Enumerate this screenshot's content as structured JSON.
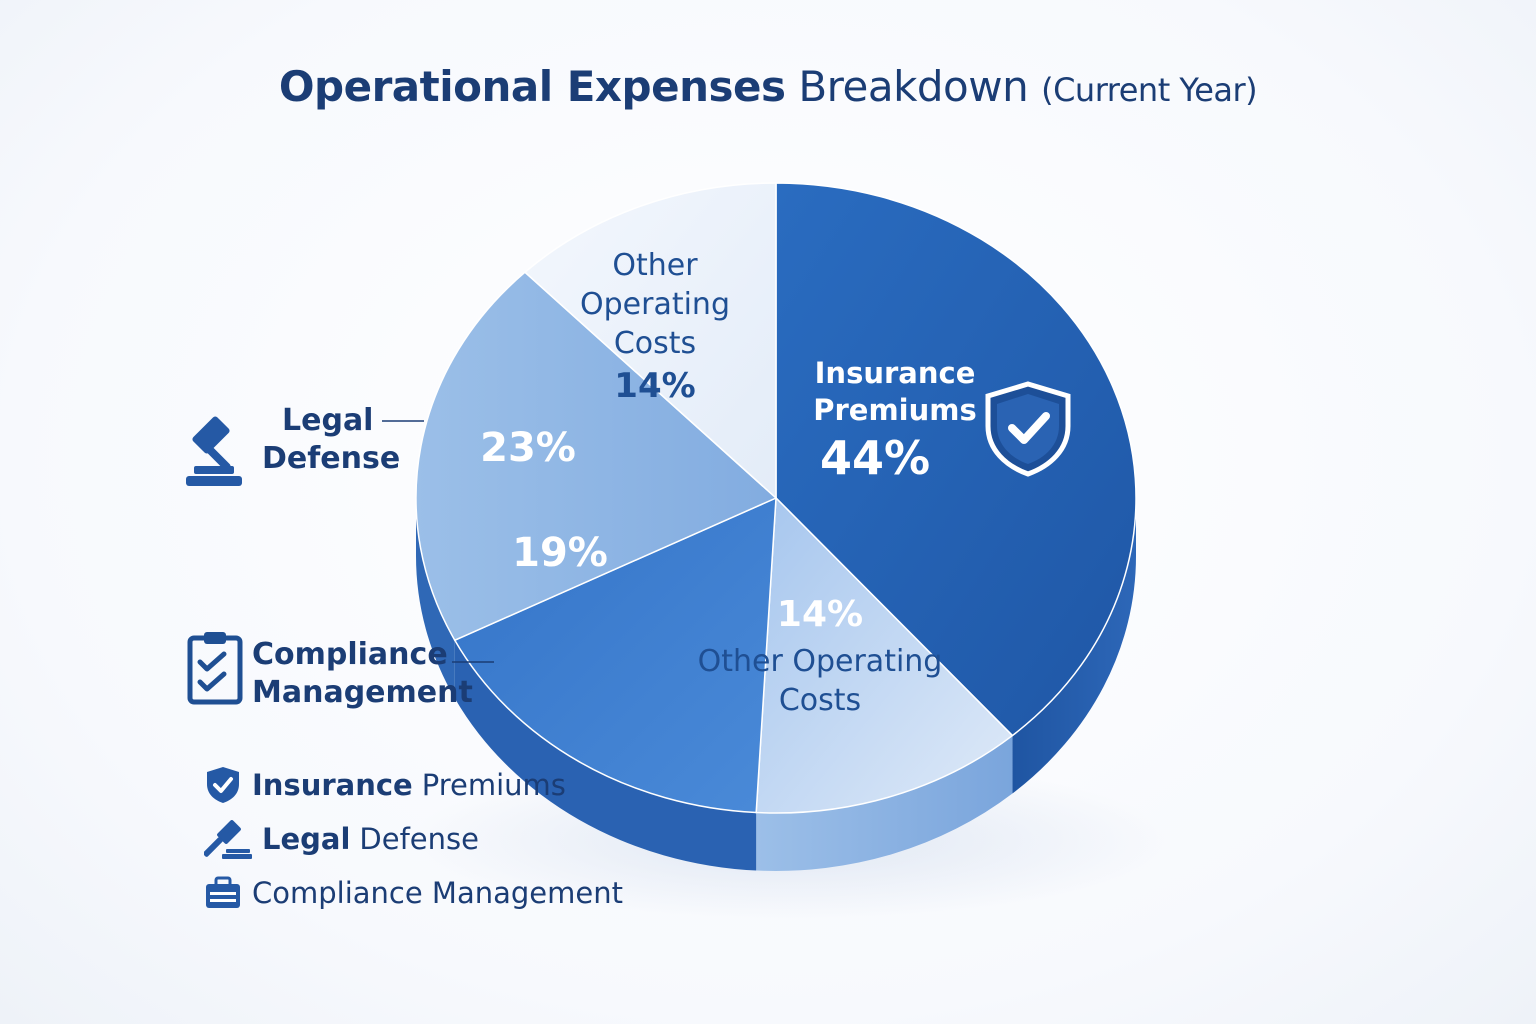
{
  "title": {
    "bold": "Operational Expenses",
    "regular": "Breakdown",
    "paren": "(Current Year)"
  },
  "chart_data": {
    "type": "pie",
    "style": "3d",
    "unit": "%",
    "slices": [
      {
        "label": "Insurance Premiums",
        "value": 44,
        "value_label": "44%",
        "color": "#2563b3"
      },
      {
        "label": "Other Operating Costs",
        "value": 14,
        "value_label": "14%",
        "color": "#b8d0ee"
      },
      {
        "label": "Compliance Management",
        "value": 19,
        "value_label": "19%",
        "color": "#3f7fd0"
      },
      {
        "label": "Legal Defense",
        "value": 23,
        "value_label": "23%",
        "color": "#8db4e3"
      },
      {
        "label": "Other Operating Costs",
        "value": 14,
        "value_label": "14%",
        "color": "#e8eff9"
      }
    ],
    "slice_labels": {
      "insurance": {
        "name_line1": "Insurance",
        "name_line2": "Premiums",
        "pct": "44%"
      },
      "other_bottom": {
        "pct": "14%",
        "name_line1": "Other Operating",
        "name_line2": "Costs"
      },
      "compliance": {
        "pct": "19%"
      },
      "legal": {
        "pct": "23%"
      },
      "other_top": {
        "name_line1": "Other",
        "name_line2": "Operating",
        "name_line3": "Costs",
        "pct": "14%"
      }
    },
    "callouts": {
      "legal": {
        "line1": "Legal",
        "line2": "Defense",
        "icon": "gavel-icon"
      },
      "compliance": {
        "line1": "Compliance",
        "line2": "Management",
        "icon": "clipboard-check-icon"
      }
    },
    "legend": [
      {
        "bold": "Insurance",
        "regular": "Premiums",
        "icon": "shield-check-icon"
      },
      {
        "bold": "Legal",
        "regular": "Defense",
        "icon": "gavel-icon"
      },
      {
        "bold": "",
        "regular": "Compliance Management",
        "icon": "briefcase-icon"
      }
    ],
    "legend_position": "bottom-left"
  }
}
